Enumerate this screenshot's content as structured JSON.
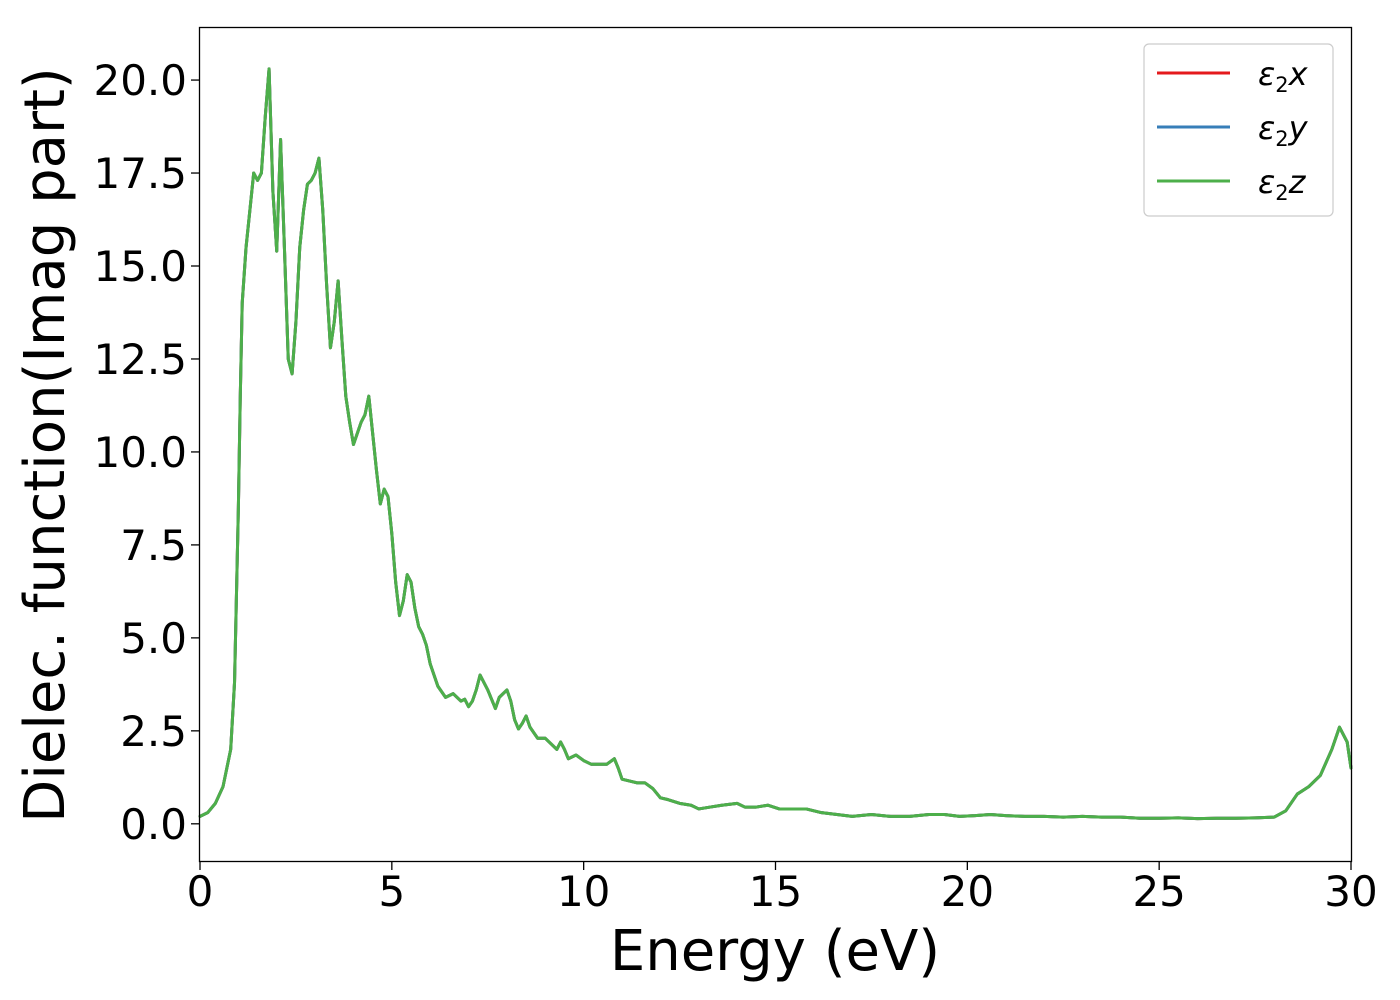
{
  "chart_data": {
    "type": "line",
    "title": "",
    "xlabel": "Energy (eV)",
    "ylabel": "Dielec. function(Imag part)",
    "xlim": [
      0,
      30
    ],
    "ylim": [
      -1.0,
      21.4
    ],
    "x_ticks": [
      0,
      5,
      10,
      15,
      20,
      25,
      30
    ],
    "y_ticks": [
      0.0,
      2.5,
      5.0,
      7.5,
      10.0,
      12.5,
      15.0,
      17.5,
      20.0
    ],
    "x_tick_labels": [
      "0",
      "5",
      "10",
      "15",
      "20",
      "25",
      "30"
    ],
    "y_tick_labels": [
      "0.0",
      "2.5",
      "5.0",
      "7.5",
      "10.0",
      "12.5",
      "15.0",
      "17.5",
      "20.0"
    ],
    "grid": false,
    "legend_position": "top-right",
    "legend": [
      {
        "base": "ε",
        "sub": "2",
        "suffix": "x",
        "color": "#e41a1c"
      },
      {
        "base": "ε",
        "sub": "2",
        "suffix": "y",
        "color": "#377eb8"
      },
      {
        "base": "ε",
        "sub": "2",
        "suffix": "z",
        "color": "#4daf4a"
      }
    ],
    "x": [
      0.0,
      0.2,
      0.4,
      0.6,
      0.8,
      0.9,
      1.0,
      1.05,
      1.1,
      1.2,
      1.3,
      1.4,
      1.5,
      1.6,
      1.7,
      1.8,
      1.9,
      2.0,
      2.1,
      2.2,
      2.3,
      2.4,
      2.5,
      2.6,
      2.7,
      2.8,
      2.9,
      3.0,
      3.1,
      3.2,
      3.3,
      3.4,
      3.5,
      3.6,
      3.7,
      3.8,
      3.9,
      4.0,
      4.1,
      4.2,
      4.3,
      4.4,
      4.5,
      4.6,
      4.7,
      4.8,
      4.9,
      5.0,
      5.1,
      5.2,
      5.3,
      5.4,
      5.5,
      5.6,
      5.7,
      5.8,
      5.9,
      6.0,
      6.2,
      6.4,
      6.6,
      6.8,
      6.9,
      7.0,
      7.1,
      7.2,
      7.3,
      7.5,
      7.7,
      7.8,
      8.0,
      8.1,
      8.2,
      8.3,
      8.4,
      8.5,
      8.6,
      8.8,
      9.0,
      9.2,
      9.3,
      9.4,
      9.5,
      9.6,
      9.7,
      9.8,
      10.0,
      10.2,
      10.4,
      10.6,
      10.8,
      10.9,
      11.0,
      11.2,
      11.4,
      11.6,
      11.8,
      12.0,
      12.2,
      12.5,
      12.8,
      13.0,
      13.3,
      13.6,
      14.0,
      14.2,
      14.5,
      14.8,
      15.1,
      15.5,
      15.8,
      16.2,
      16.6,
      17.0,
      17.5,
      18.0,
      18.5,
      19.0,
      19.4,
      19.8,
      20.2,
      20.6,
      21.0,
      21.5,
      22.0,
      22.5,
      23.0,
      23.5,
      24.0,
      24.5,
      25.0,
      25.5,
      26.0,
      26.5,
      27.0,
      27.5,
      28.0,
      28.3,
      28.6,
      28.9,
      29.2,
      29.5,
      29.7,
      29.9,
      30.0
    ],
    "series": [
      {
        "name": "ε2x",
        "color": "#e41a1c",
        "values": [
          0.2,
          0.3,
          0.55,
          1.0,
          2.0,
          3.8,
          8.5,
          11.5,
          14.0,
          15.5,
          16.5,
          17.5,
          17.3,
          17.5,
          19.0,
          20.3,
          17.0,
          15.4,
          18.4,
          15.5,
          12.5,
          12.1,
          13.5,
          15.5,
          16.5,
          17.2,
          17.3,
          17.5,
          17.9,
          16.5,
          14.5,
          12.8,
          13.5,
          14.6,
          13.0,
          11.5,
          10.8,
          10.2,
          10.5,
          10.8,
          11.0,
          11.5,
          10.5,
          9.5,
          8.6,
          9.0,
          8.8,
          7.8,
          6.5,
          5.6,
          6.0,
          6.7,
          6.5,
          5.8,
          5.3,
          5.1,
          4.8,
          4.3,
          3.7,
          3.4,
          3.5,
          3.3,
          3.35,
          3.15,
          3.3,
          3.6,
          4.0,
          3.6,
          3.1,
          3.4,
          3.6,
          3.3,
          2.8,
          2.55,
          2.7,
          2.9,
          2.6,
          2.3,
          2.3,
          2.1,
          2.0,
          2.2,
          2.0,
          1.75,
          1.8,
          1.85,
          1.7,
          1.6,
          1.6,
          1.6,
          1.75,
          1.5,
          1.2,
          1.15,
          1.1,
          1.1,
          0.95,
          0.7,
          0.65,
          0.55,
          0.5,
          0.4,
          0.45,
          0.5,
          0.55,
          0.45,
          0.45,
          0.5,
          0.4,
          0.4,
          0.4,
          0.3,
          0.25,
          0.2,
          0.25,
          0.2,
          0.2,
          0.25,
          0.25,
          0.2,
          0.22,
          0.25,
          0.22,
          0.2,
          0.2,
          0.18,
          0.2,
          0.18,
          0.18,
          0.15,
          0.15,
          0.16,
          0.14,
          0.15,
          0.15,
          0.16,
          0.18,
          0.35,
          0.8,
          1.0,
          1.3,
          2.0,
          2.6,
          2.2,
          1.5
        ]
      },
      {
        "name": "ε2y",
        "color": "#377eb8",
        "values": [
          0.2,
          0.3,
          0.55,
          1.0,
          2.0,
          3.8,
          8.5,
          11.5,
          14.0,
          15.5,
          16.5,
          17.5,
          17.3,
          17.5,
          19.0,
          20.3,
          17.0,
          15.4,
          18.4,
          15.5,
          12.5,
          12.1,
          13.5,
          15.5,
          16.5,
          17.2,
          17.3,
          17.5,
          17.9,
          16.5,
          14.5,
          12.8,
          13.5,
          14.6,
          13.0,
          11.5,
          10.8,
          10.2,
          10.5,
          10.8,
          11.0,
          11.5,
          10.5,
          9.5,
          8.6,
          9.0,
          8.8,
          7.8,
          6.5,
          5.6,
          6.0,
          6.7,
          6.5,
          5.8,
          5.3,
          5.1,
          4.8,
          4.3,
          3.7,
          3.4,
          3.5,
          3.3,
          3.35,
          3.15,
          3.3,
          3.6,
          4.0,
          3.6,
          3.1,
          3.4,
          3.6,
          3.3,
          2.8,
          2.55,
          2.7,
          2.9,
          2.6,
          2.3,
          2.3,
          2.1,
          2.0,
          2.2,
          2.0,
          1.75,
          1.8,
          1.85,
          1.7,
          1.6,
          1.6,
          1.6,
          1.75,
          1.5,
          1.2,
          1.15,
          1.1,
          1.1,
          0.95,
          0.7,
          0.65,
          0.55,
          0.5,
          0.4,
          0.45,
          0.5,
          0.55,
          0.45,
          0.45,
          0.5,
          0.4,
          0.4,
          0.4,
          0.3,
          0.25,
          0.2,
          0.25,
          0.2,
          0.2,
          0.25,
          0.25,
          0.2,
          0.22,
          0.25,
          0.22,
          0.2,
          0.2,
          0.18,
          0.2,
          0.18,
          0.18,
          0.15,
          0.15,
          0.16,
          0.14,
          0.15,
          0.15,
          0.16,
          0.18,
          0.35,
          0.8,
          1.0,
          1.3,
          2.0,
          2.6,
          2.2,
          1.5
        ]
      },
      {
        "name": "ε2z",
        "color": "#4daf4a",
        "values": [
          0.2,
          0.3,
          0.55,
          1.0,
          2.0,
          3.8,
          8.5,
          11.5,
          14.0,
          15.5,
          16.5,
          17.5,
          17.3,
          17.5,
          19.0,
          20.3,
          17.0,
          15.4,
          18.4,
          15.5,
          12.5,
          12.1,
          13.5,
          15.5,
          16.5,
          17.2,
          17.3,
          17.5,
          17.9,
          16.5,
          14.5,
          12.8,
          13.5,
          14.6,
          13.0,
          11.5,
          10.8,
          10.2,
          10.5,
          10.8,
          11.0,
          11.5,
          10.5,
          9.5,
          8.6,
          9.0,
          8.8,
          7.8,
          6.5,
          5.6,
          6.0,
          6.7,
          6.5,
          5.8,
          5.3,
          5.1,
          4.8,
          4.3,
          3.7,
          3.4,
          3.5,
          3.3,
          3.35,
          3.15,
          3.3,
          3.6,
          4.0,
          3.6,
          3.1,
          3.4,
          3.6,
          3.3,
          2.8,
          2.55,
          2.7,
          2.9,
          2.6,
          2.3,
          2.3,
          2.1,
          2.0,
          2.2,
          2.0,
          1.75,
          1.8,
          1.85,
          1.7,
          1.6,
          1.6,
          1.6,
          1.75,
          1.5,
          1.2,
          1.15,
          1.1,
          1.1,
          0.95,
          0.7,
          0.65,
          0.55,
          0.5,
          0.4,
          0.45,
          0.5,
          0.55,
          0.45,
          0.45,
          0.5,
          0.4,
          0.4,
          0.4,
          0.3,
          0.25,
          0.2,
          0.25,
          0.2,
          0.2,
          0.25,
          0.25,
          0.2,
          0.22,
          0.25,
          0.22,
          0.2,
          0.2,
          0.18,
          0.2,
          0.18,
          0.18,
          0.15,
          0.15,
          0.16,
          0.14,
          0.15,
          0.15,
          0.16,
          0.18,
          0.35,
          0.8,
          1.0,
          1.3,
          2.0,
          2.6,
          2.2,
          1.5
        ]
      }
    ]
  }
}
